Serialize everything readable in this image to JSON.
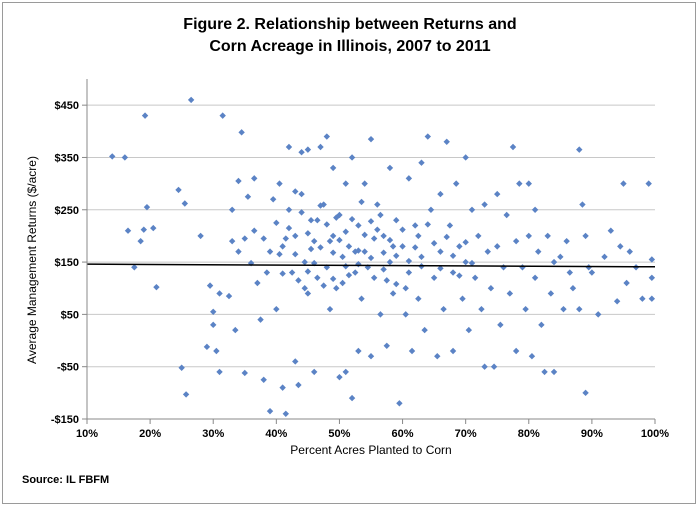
{
  "chart_data": {
    "type": "scatter",
    "title_line1": "Figure 2. Relationship between Returns and",
    "title_line2": "Corn Acreage in Illinois,  2007 to 2011",
    "xlabel": "Percent Acres Planted to Corn",
    "ylabel": "Average Management Returns ($/acre)",
    "xlim": [
      10,
      100
    ],
    "ylim": [
      -150,
      500
    ],
    "x_ticks": [
      10,
      20,
      30,
      40,
      50,
      60,
      70,
      80,
      90,
      100
    ],
    "x_tick_labels": [
      "10%",
      "20%",
      "30%",
      "40%",
      "50%",
      "60%",
      "70%",
      "80%",
      "90%",
      "100%"
    ],
    "y_ticks": [
      -150,
      -50,
      50,
      150,
      250,
      350,
      450
    ],
    "y_tick_labels": [
      "-$150",
      "-$50",
      "$50",
      "$150",
      "$250",
      "$350",
      "$450"
    ],
    "grid": "horizontal",
    "marker_color": "#5b83c5",
    "trendline_color": "#000000",
    "trendline": {
      "x": [
        10,
        100
      ],
      "y": [
        146,
        141
      ]
    },
    "series": [
      {
        "points": [
          [
            14,
            352
          ],
          [
            16,
            350
          ],
          [
            16.5,
            210
          ],
          [
            17.5,
            140
          ],
          [
            18.5,
            190
          ],
          [
            19,
            212
          ],
          [
            19.2,
            430
          ],
          [
            19.5,
            255
          ],
          [
            20.5,
            215
          ],
          [
            21,
            102
          ],
          [
            24.5,
            288
          ],
          [
            25,
            -52
          ],
          [
            25.5,
            262
          ],
          [
            25.7,
            -103
          ],
          [
            26.5,
            460
          ],
          [
            28,
            200
          ],
          [
            29,
            -12
          ],
          [
            29.5,
            105
          ],
          [
            30,
            55
          ],
          [
            30,
            30
          ],
          [
            30.5,
            -20
          ],
          [
            31,
            90
          ],
          [
            31,
            -60
          ],
          [
            31.5,
            430
          ],
          [
            32.5,
            85
          ],
          [
            33,
            190
          ],
          [
            33,
            250
          ],
          [
            33.5,
            20
          ],
          [
            34,
            170
          ],
          [
            34,
            305
          ],
          [
            34.5,
            398
          ],
          [
            35,
            195
          ],
          [
            35,
            -62
          ],
          [
            35.5,
            275
          ],
          [
            36,
            148
          ],
          [
            36.5,
            210
          ],
          [
            36.5,
            310
          ],
          [
            37,
            110
          ],
          [
            37.5,
            40
          ],
          [
            38,
            195
          ],
          [
            38,
            -75
          ],
          [
            38.5,
            130
          ],
          [
            39,
            -135
          ],
          [
            39,
            170
          ],
          [
            39.5,
            270
          ],
          [
            40,
            225
          ],
          [
            40,
            60
          ],
          [
            40.5,
            300
          ],
          [
            41,
            -90
          ],
          [
            41,
            180
          ],
          [
            41.5,
            -140
          ],
          [
            42,
            370
          ],
          [
            42,
            250
          ],
          [
            42.5,
            130
          ],
          [
            43,
            -40
          ],
          [
            43,
            200
          ],
          [
            43.5,
            -85
          ],
          [
            44,
            360
          ],
          [
            44,
            280
          ],
          [
            44.5,
            150
          ],
          [
            45,
            365
          ],
          [
            45,
            90
          ],
          [
            45.5,
            230
          ],
          [
            46,
            -60
          ],
          [
            46,
            190
          ],
          [
            46.5,
            120
          ],
          [
            47,
            370
          ],
          [
            47.5,
            260
          ],
          [
            48,
            390
          ],
          [
            48,
            140
          ],
          [
            48.5,
            60
          ],
          [
            49,
            200
          ],
          [
            49,
            330
          ],
          [
            49.5,
            100
          ],
          [
            50,
            -70
          ],
          [
            50,
            240
          ],
          [
            50.5,
            160
          ],
          [
            51,
            -60
          ],
          [
            51,
            300
          ],
          [
            51.5,
            180
          ],
          [
            52,
            -110
          ],
          [
            52,
            350
          ],
          [
            52.5,
            130
          ],
          [
            53,
            -20
          ],
          [
            53,
            220
          ],
          [
            53.5,
            80
          ],
          [
            54,
            300
          ],
          [
            54,
            170
          ],
          [
            55,
            385
          ],
          [
            55,
            -30
          ],
          [
            55.5,
            120
          ],
          [
            56,
            260
          ],
          [
            56.5,
            50
          ],
          [
            57,
            200
          ],
          [
            57.5,
            -10
          ],
          [
            58,
            330
          ],
          [
            58,
            150
          ],
          [
            58.5,
            90
          ],
          [
            59,
            230
          ],
          [
            59.5,
            -120
          ],
          [
            60,
            180
          ],
          [
            60.5,
            50
          ],
          [
            61,
            310
          ],
          [
            61,
            130
          ],
          [
            61.5,
            -20
          ],
          [
            62,
            220
          ],
          [
            62.5,
            80
          ],
          [
            63,
            340
          ],
          [
            63,
            160
          ],
          [
            63.5,
            20
          ],
          [
            64,
            390
          ],
          [
            64.5,
            250
          ],
          [
            65,
            120
          ],
          [
            65.5,
            -30
          ],
          [
            66,
            280
          ],
          [
            66,
            170
          ],
          [
            66.5,
            60
          ],
          [
            67,
            380
          ],
          [
            67.5,
            220
          ],
          [
            68,
            130
          ],
          [
            68,
            -20
          ],
          [
            68.5,
            300
          ],
          [
            69,
            180
          ],
          [
            69.5,
            80
          ],
          [
            70,
            350
          ],
          [
            70,
            150
          ],
          [
            70.5,
            20
          ],
          [
            71,
            250
          ],
          [
            71.5,
            120
          ],
          [
            72,
            200
          ],
          [
            72.5,
            60
          ],
          [
            73,
            -50
          ],
          [
            73,
            260
          ],
          [
            73.5,
            170
          ],
          [
            74,
            100
          ],
          [
            74.5,
            -50
          ],
          [
            75,
            280
          ],
          [
            75,
            180
          ],
          [
            75.5,
            30
          ],
          [
            76,
            140
          ],
          [
            76.5,
            240
          ],
          [
            77,
            90
          ],
          [
            77.5,
            370
          ],
          [
            78,
            190
          ],
          [
            78,
            -20
          ],
          [
            78.5,
            300
          ],
          [
            79,
            140
          ],
          [
            79.5,
            60
          ],
          [
            80,
            300
          ],
          [
            80,
            200
          ],
          [
            80.5,
            -30
          ],
          [
            81,
            120
          ],
          [
            81,
            250
          ],
          [
            81.5,
            170
          ],
          [
            82,
            30
          ],
          [
            82.5,
            -60
          ],
          [
            83,
            200
          ],
          [
            83.5,
            90
          ],
          [
            84,
            -60
          ],
          [
            84,
            150
          ],
          [
            85,
            160
          ],
          [
            85.5,
            60
          ],
          [
            86,
            190
          ],
          [
            86.5,
            130
          ],
          [
            87,
            100
          ],
          [
            88,
            365
          ],
          [
            88,
            60
          ],
          [
            88.5,
            260
          ],
          [
            89,
            -100
          ],
          [
            89,
            200
          ],
          [
            89.5,
            140
          ],
          [
            90,
            130
          ],
          [
            91,
            50
          ],
          [
            92,
            160
          ],
          [
            93,
            210
          ],
          [
            94,
            75
          ],
          [
            94.5,
            180
          ],
          [
            95,
            300
          ],
          [
            95.5,
            110
          ],
          [
            96,
            170
          ],
          [
            97,
            140
          ],
          [
            98,
            80
          ],
          [
            99,
            300
          ],
          [
            99.5,
            155
          ],
          [
            99.5,
            120
          ],
          [
            99.5,
            80
          ],
          [
            42,
            215
          ],
          [
            43,
            165
          ],
          [
            44,
            245
          ],
          [
            45,
            205
          ],
          [
            46,
            148
          ],
          [
            47,
            178
          ],
          [
            48,
            222
          ],
          [
            49,
            168
          ],
          [
            50,
            192
          ],
          [
            51,
            142
          ],
          [
            52,
            232
          ],
          [
            53,
            172
          ],
          [
            54,
            202
          ],
          [
            55,
            158
          ],
          [
            56,
            212
          ],
          [
            57,
            136
          ],
          [
            58,
            192
          ],
          [
            59,
            162
          ],
          [
            60,
            212
          ],
          [
            61,
            152
          ],
          [
            62,
            178
          ],
          [
            63,
            142
          ],
          [
            64,
            222
          ],
          [
            65,
            186
          ],
          [
            66,
            138
          ],
          [
            67,
            198
          ],
          [
            68,
            162
          ],
          [
            69,
            124
          ],
          [
            70,
            188
          ],
          [
            71,
            148
          ],
          [
            40.5,
            165
          ],
          [
            41.5,
            195
          ],
          [
            43.5,
            115
          ],
          [
            45.5,
            175
          ],
          [
            47.5,
            105
          ],
          [
            49.5,
            235
          ],
          [
            51.5,
            125
          ],
          [
            53.5,
            265
          ],
          [
            55.5,
            195
          ],
          [
            57.5,
            115
          ],
          [
            44.5,
            100
          ],
          [
            46.5,
            230
          ],
          [
            48.5,
            190
          ],
          [
            50.5,
            110
          ],
          [
            52.5,
            170
          ],
          [
            54.5,
            140
          ],
          [
            56.5,
            240
          ],
          [
            58.5,
            180
          ],
          [
            60.5,
            100
          ],
          [
            62.5,
            200
          ],
          [
            41,
            128
          ],
          [
            43,
            285
          ],
          [
            45,
            132
          ],
          [
            47,
            258
          ],
          [
            49,
            118
          ],
          [
            51,
            208
          ],
          [
            53,
            146
          ],
          [
            55,
            228
          ],
          [
            57,
            168
          ],
          [
            59,
            108
          ]
        ]
      }
    ]
  },
  "source": "Source: IL FBFM"
}
